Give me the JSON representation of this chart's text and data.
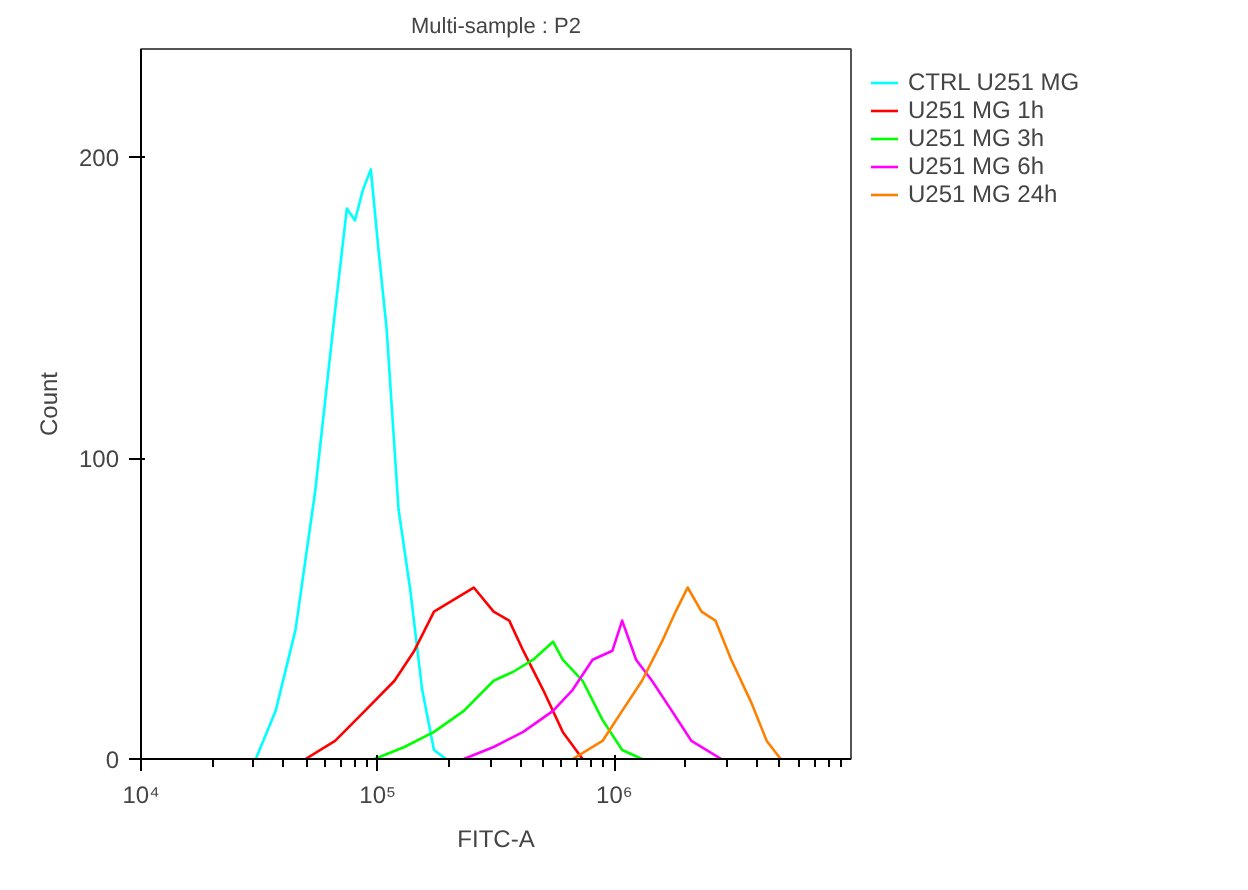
{
  "chart_data": {
    "type": "line",
    "title": "Multi-sample : P2",
    "xlabel": "FITC-A",
    "ylabel": "Count",
    "log": "x",
    "xlim": [
      10000,
      10000000
    ],
    "xticks": [
      {
        "value": 10000,
        "label": "10⁴"
      },
      {
        "value": 100000,
        "label": "10⁵"
      },
      {
        "value": 1000000,
        "label": "10⁶"
      }
    ],
    "ylim": [
      0,
      236
    ],
    "yticks": [
      0,
      100,
      200
    ],
    "grid": false,
    "legend": "right",
    "series": [
      {
        "name": "CTRL U251 MG",
        "color": "#00ffff",
        "x": [
          30550,
          37070,
          44980,
          54450,
          66070,
          74130,
          80170,
          86500,
          93540,
          100900,
          109100,
          122500,
          137400,
          154200,
          173000,
          194500
        ],
        "values": [
          0,
          16,
          43,
          89,
          149,
          183,
          179,
          189,
          196,
          169,
          143,
          83,
          56,
          23,
          3,
          0
        ]
      },
      {
        "name": "U251 MG 1h",
        "color": "#ff0000",
        "x": [
          49550,
          66070,
          88310,
          117800,
          142900,
          173000,
          209900,
          254700,
          309000,
          359700,
          412100,
          500000,
          605300,
          734500
        ],
        "values": [
          0,
          6,
          16,
          26,
          36,
          49,
          53,
          57,
          49,
          46,
          36,
          23,
          9,
          0
        ]
      },
      {
        "name": "U251 MG 3h",
        "color": "#00ff00",
        "x": [
          97060,
          129700,
          173000,
          231200,
          309000,
          374100,
          453900,
          550800,
          605300,
          734500,
          891300,
          1079000,
          1309000
        ],
        "values": [
          0,
          4,
          9,
          16,
          26,
          29,
          33,
          39,
          33,
          26,
          13,
          3,
          0
        ]
      },
      {
        "name": "U251 MG 6h",
        "color": "#ff00ff",
        "x": [
          231200,
          309000,
          412100,
          550800,
          666800,
          809100,
          981700,
          1079000,
          1236000,
          1442000,
          1750000,
          2118000,
          2831000
        ],
        "values": [
          0,
          4,
          9,
          16,
          23,
          33,
          36,
          46,
          33,
          26,
          16,
          6,
          0
        ]
      },
      {
        "name": "U251 MG 24h",
        "color": "#ff8000",
        "x": [
          666800,
          891300,
          1079000,
          1309000,
          1589000,
          1816000,
          2041000,
          2336000,
          2674000,
          3119000,
          3779000,
          4406000,
          5047000
        ],
        "values": [
          0,
          6,
          16,
          26,
          39,
          49,
          57,
          49,
          46,
          33,
          19,
          6,
          0
        ]
      }
    ]
  }
}
